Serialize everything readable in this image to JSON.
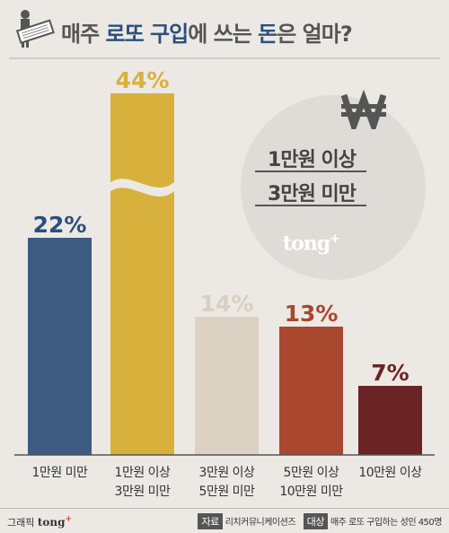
{
  "title": {
    "part1": "매주 ",
    "part2": "로또",
    "part3": " 구입",
    "part4": "에 쓰는 ",
    "part5": "돈",
    "part6": "은 얼마?"
  },
  "callout": {
    "line1": "1만원 이상",
    "line2": "3만원 미만",
    "brand": "tong",
    "brand_sup": "+"
  },
  "footer": {
    "graphic_label": "그래픽",
    "brand": "tong",
    "brand_sup": "+",
    "source_label": "자료",
    "source_value": "리치커뮤니케이션즈",
    "target_label": "대상",
    "target_value": "매주 로또 구입하는 성인 450명"
  },
  "colors": {
    "accent": "#2c4f7c",
    "background": "#ece9e4"
  },
  "chart_data": {
    "type": "bar",
    "title": "매주 로또 구입에 쓰는 돈은 얼마?",
    "categories": [
      [
        "1만원 미만"
      ],
      [
        "1만원 이상",
        "3만원 미만"
      ],
      [
        "3만원 이상",
        "5만원 미만"
      ],
      [
        "5만원 이상",
        "10만원 미만"
      ],
      [
        "10만원 이상"
      ]
    ],
    "values": [
      22,
      44,
      14,
      13,
      7
    ],
    "value_labels": [
      "22%",
      "44%",
      "14%",
      "13%",
      "7%"
    ],
    "colors": [
      "#3d5a80",
      "#d8b13d",
      "#dcd2c3",
      "#a9472f",
      "#6b2424"
    ],
    "label_colors": [
      "#2c4f7c",
      "#d8b13d",
      "#d9cfbf",
      "#a9472f",
      "#6b2424"
    ],
    "axis_break": {
      "category_index": 1
    },
    "xlabel": "",
    "ylabel": "",
    "grid": false,
    "legend": "none"
  }
}
